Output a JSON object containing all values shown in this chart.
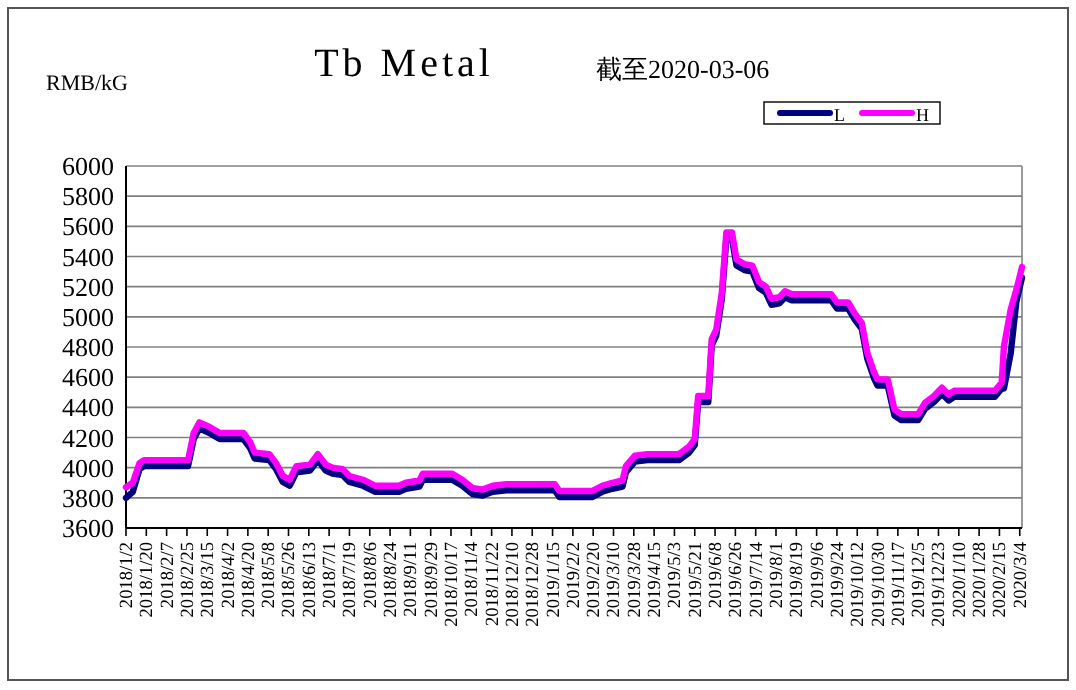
{
  "chart_data": {
    "type": "line",
    "title": "Tb Metal",
    "subtitle": "截至2020-03-06",
    "ylabel": "RMB/kG",
    "x": [
      "2018-01-02",
      "2018-01-08",
      "2018-01-14",
      "2018-01-18",
      "2018-02-26",
      "2018-03-03",
      "2018-03-08",
      "2018-03-17",
      "2018-03-26",
      "2018-04-16",
      "2018-04-22",
      "2018-04-26",
      "2018-05-09",
      "2018-05-15",
      "2018-05-21",
      "2018-05-27",
      "2018-06-02",
      "2018-06-14",
      "2018-06-21",
      "2018-06-28",
      "2018-07-04",
      "2018-07-13",
      "2018-07-19",
      "2018-07-31",
      "2018-08-11",
      "2018-09-01",
      "2018-09-07",
      "2018-09-19",
      "2018-09-22",
      "2018-10-18",
      "2018-10-27",
      "2018-11-05",
      "2018-11-14",
      "2018-11-23",
      "2018-12-05",
      "2019-01-17",
      "2019-01-21",
      "2019-02-19",
      "2019-02-28",
      "2019-03-09",
      "2019-03-18",
      "2019-03-21",
      "2019-03-29",
      "2019-04-09",
      "2019-05-07",
      "2019-05-16",
      "2019-05-21",
      "2019-05-24",
      "2019-06-02",
      "2019-06-05",
      "2019-06-09",
      "2019-06-14",
      "2019-06-18",
      "2019-06-23",
      "2019-06-27",
      "2019-07-04",
      "2019-07-11",
      "2019-07-17",
      "2019-07-23",
      "2019-07-28",
      "2019-08-04",
      "2019-08-09",
      "2019-08-15",
      "2019-09-19",
      "2019-09-24",
      "2019-10-04",
      "2019-10-10",
      "2019-10-16",
      "2019-10-21",
      "2019-10-27",
      "2019-10-30",
      "2019-11-08",
      "2019-11-14",
      "2019-11-20",
      "2019-12-05",
      "2019-12-11",
      "2019-12-19",
      "2019-12-26",
      "2020-01-01",
      "2020-01-06",
      "2020-02-11",
      "2020-02-17",
      "2020-02-19",
      "2020-02-25",
      "2020-03-01",
      "2020-03-06"
    ],
    "series": [
      {
        "name": "L",
        "color": "#000080",
        "values": [
          3800,
          3840,
          3990,
          4010,
          4010,
          4190,
          4260,
          4230,
          4190,
          4190,
          4130,
          4060,
          4050,
          3990,
          3905,
          3880,
          3970,
          3980,
          4050,
          3980,
          3960,
          3950,
          3905,
          3880,
          3840,
          3840,
          3860,
          3875,
          3920,
          3920,
          3880,
          3825,
          3815,
          3840,
          3850,
          3850,
          3805,
          3805,
          3840,
          3860,
          3875,
          3970,
          4040,
          4050,
          4050,
          4100,
          4150,
          4435,
          4435,
          4810,
          4875,
          5120,
          5520,
          5520,
          5340,
          5310,
          5300,
          5190,
          5160,
          5080,
          5090,
          5130,
          5110,
          5110,
          5055,
          5055,
          4980,
          4920,
          4720,
          4590,
          4545,
          4545,
          4345,
          4315,
          4315,
          4390,
          4435,
          4490,
          4445,
          4470,
          4470,
          4525,
          4525,
          4760,
          5100,
          5260
        ]
      },
      {
        "name": "H",
        "color": "#ff00ff",
        "values": [
          3870,
          3900,
          4030,
          4050,
          4050,
          4230,
          4300,
          4270,
          4230,
          4230,
          4170,
          4100,
          4090,
          4030,
          3945,
          3920,
          4010,
          4020,
          4090,
          4020,
          4000,
          3990,
          3945,
          3920,
          3880,
          3880,
          3900,
          3915,
          3960,
          3960,
          3920,
          3865,
          3855,
          3880,
          3890,
          3890,
          3845,
          3845,
          3880,
          3900,
          3915,
          4010,
          4080,
          4090,
          4090,
          4140,
          4190,
          4475,
          4475,
          4850,
          4915,
          5160,
          5560,
          5560,
          5380,
          5350,
          5340,
          5230,
          5200,
          5120,
          5130,
          5170,
          5150,
          5150,
          5095,
          5095,
          5020,
          4960,
          4760,
          4630,
          4585,
          4585,
          4385,
          4355,
          4355,
          4430,
          4475,
          4530,
          4485,
          4510,
          4510,
          4565,
          4805,
          5050,
          5180,
          5330
        ]
      }
    ],
    "xlim": [
      "2018-01-02",
      "2020-03-06"
    ],
    "xticks": [
      {
        "value": "2018-01-02",
        "label": "2018/1/2"
      },
      {
        "value": "2018-01-20",
        "label": "2018/1/20"
      },
      {
        "value": "2018-02-07",
        "label": "2018/2/7"
      },
      {
        "value": "2018-02-25",
        "label": "2018/2/25"
      },
      {
        "value": "2018-03-15",
        "label": "2018/3/15"
      },
      {
        "value": "2018-04-02",
        "label": "2018/4/2"
      },
      {
        "value": "2018-04-20",
        "label": "2018/4/20"
      },
      {
        "value": "2018-05-08",
        "label": "2018/5/8"
      },
      {
        "value": "2018-05-26",
        "label": "2018/5/26"
      },
      {
        "value": "2018-06-13",
        "label": "2018/6/13"
      },
      {
        "value": "2018-07-01",
        "label": "2018/7/1"
      },
      {
        "value": "2018-07-19",
        "label": "2018/7/19"
      },
      {
        "value": "2018-08-06",
        "label": "2018/8/6"
      },
      {
        "value": "2018-08-24",
        "label": "2018/8/24"
      },
      {
        "value": "2018-09-11",
        "label": "2018/9/11"
      },
      {
        "value": "2018-09-29",
        "label": "2018/9/29"
      },
      {
        "value": "2018-10-17",
        "label": "2018/10/17"
      },
      {
        "value": "2018-11-04",
        "label": "2018/11/4"
      },
      {
        "value": "2018-11-22",
        "label": "2018/11/22"
      },
      {
        "value": "2018-12-10",
        "label": "2018/12/10"
      },
      {
        "value": "2018-12-28",
        "label": "2018/12/28"
      },
      {
        "value": "2019-01-15",
        "label": "2019/1/15"
      },
      {
        "value": "2019-02-02",
        "label": "2019/2/2"
      },
      {
        "value": "2019-02-20",
        "label": "2019/2/20"
      },
      {
        "value": "2019-03-10",
        "label": "2019/3/10"
      },
      {
        "value": "2019-03-28",
        "label": "2019/3/28"
      },
      {
        "value": "2019-04-15",
        "label": "2019/4/15"
      },
      {
        "value": "2019-05-03",
        "label": "2019/5/3"
      },
      {
        "value": "2019-05-21",
        "label": "2019/5/21"
      },
      {
        "value": "2019-06-08",
        "label": "2019/6/8"
      },
      {
        "value": "2019-06-26",
        "label": "2019/6/26"
      },
      {
        "value": "2019-07-14",
        "label": "2019/7/14"
      },
      {
        "value": "2019-08-01",
        "label": "2019/8/1"
      },
      {
        "value": "2019-08-19",
        "label": "2019/8/19"
      },
      {
        "value": "2019-09-06",
        "label": "2019/9/6"
      },
      {
        "value": "2019-09-24",
        "label": "2019/9/24"
      },
      {
        "value": "2019-10-12",
        "label": "2019/10/12"
      },
      {
        "value": "2019-10-30",
        "label": "2019/10/30"
      },
      {
        "value": "2019-11-17",
        "label": "2019/11/17"
      },
      {
        "value": "2019-12-05",
        "label": "2019/12/5"
      },
      {
        "value": "2019-12-23",
        "label": "2019/12/23"
      },
      {
        "value": "2020-01-10",
        "label": "2020/1/10"
      },
      {
        "value": "2020-01-28",
        "label": "2020/1/28"
      },
      {
        "value": "2020-02-15",
        "label": "2020/2/15"
      },
      {
        "value": "2020-03-04",
        "label": "2020/3/4"
      }
    ],
    "ylim": [
      3600,
      6000
    ],
    "yticks": [
      3600,
      3800,
      4000,
      4200,
      4400,
      4600,
      4800,
      5000,
      5200,
      5400,
      5600,
      5800,
      6000
    ],
    "grid": "y",
    "legend": "top right"
  }
}
